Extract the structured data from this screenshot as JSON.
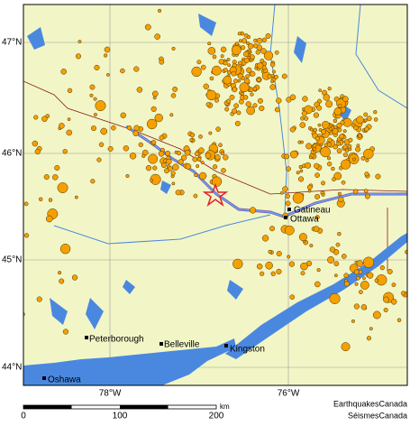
{
  "map": {
    "latitude_labels": [
      "47°N",
      "46°N",
      "45°N",
      "44°N"
    ],
    "longitude_labels": [
      "78°W",
      "76°W"
    ],
    "cities": [
      "Gatineau",
      "Ottawa",
      "Peterborough",
      "Belleville",
      "Kingston",
      "Oshawa"
    ],
    "scale_bar": {
      "ticks": [
        "0",
        "100",
        "200"
      ],
      "unit": "km"
    },
    "credits": [
      "EarthquakesCanada",
      "SéismesCanada"
    ]
  }
}
